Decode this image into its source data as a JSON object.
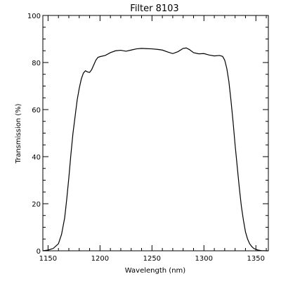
{
  "chart_data": {
    "type": "line",
    "title": "Filter 8103",
    "xlabel": "Wavelength (nm)",
    "ylabel": "Transmission (%)",
    "xlim": [
      1145,
      1362
    ],
    "ylim": [
      0,
      100
    ],
    "x_ticks": [
      1150,
      1200,
      1250,
      1300,
      1350
    ],
    "y_ticks": [
      0,
      20,
      40,
      60,
      80,
      100
    ],
    "x_minor_step": 10,
    "y_minor_step": 5,
    "grid": false,
    "legend": "none",
    "series": [
      {
        "x": [
          1145,
          1150,
          1155,
          1160,
          1163,
          1166,
          1168,
          1170,
          1172,
          1174,
          1176,
          1178,
          1180,
          1182,
          1184,
          1186,
          1188,
          1190,
          1192,
          1194,
          1196,
          1198,
          1200,
          1205,
          1210,
          1215,
          1220,
          1225,
          1230,
          1235,
          1240,
          1245,
          1250,
          1255,
          1260,
          1265,
          1270,
          1275,
          1280,
          1283,
          1286,
          1290,
          1295,
          1300,
          1305,
          1310,
          1315,
          1318,
          1320,
          1322,
          1324,
          1326,
          1328,
          1330,
          1332,
          1334,
          1336,
          1338,
          1340,
          1342,
          1344,
          1346,
          1348,
          1350,
          1352,
          1355,
          1360,
          1362
        ],
        "y": [
          0,
          0.3,
          1,
          3,
          7,
          14,
          22,
          31,
          41,
          50,
          57,
          64,
          69,
          73,
          75.5,
          76.5,
          76,
          75.8,
          77,
          79,
          81,
          82.2,
          82.5,
          83,
          84.2,
          85,
          85.2,
          84.8,
          85.3,
          85.8,
          86,
          85.9,
          85.8,
          85.6,
          85.3,
          84.5,
          83.8,
          84.6,
          86,
          86.2,
          85.5,
          84.2,
          83.7,
          83.8,
          83.2,
          82.8,
          83,
          82.6,
          81,
          77.5,
          72,
          64,
          55,
          45,
          36,
          27,
          19,
          13,
          8,
          5,
          3,
          1.8,
          1,
          0.6,
          0.3,
          0.1,
          0,
          0
        ]
      }
    ]
  }
}
